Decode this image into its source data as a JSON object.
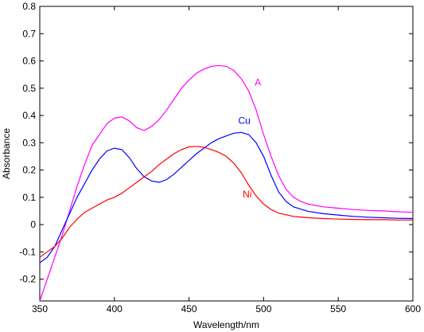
{
  "chart_data": {
    "type": "line",
    "xlabel": "Wavelength/nm",
    "ylabel": "Absorbance",
    "xlim": [
      350,
      600
    ],
    "ylim": [
      -0.28,
      0.8
    ],
    "x_ticks": [
      350,
      400,
      450,
      500,
      550,
      600
    ],
    "y_ticks": [
      -0.2,
      -0.1,
      0,
      0.1,
      0.2,
      0.3,
      0.4,
      0.5,
      0.6,
      0.7,
      0.8
    ],
    "y_tick_labels": [
      "-0.2",
      "-0.1",
      "0",
      "0.1",
      "0.2",
      "0.3",
      "0.4",
      "0.5",
      "0.6",
      "0.7",
      "0.8"
    ],
    "grid": false,
    "series": [
      {
        "name": "A",
        "color": "#ff00ff",
        "label_position": [
          494,
          0.51
        ],
        "x": [
          350,
          355,
          360,
          365,
          370,
          375,
          380,
          385,
          390,
          395,
          400,
          405,
          410,
          415,
          420,
          425,
          430,
          435,
          440,
          445,
          450,
          455,
          460,
          465,
          470,
          475,
          480,
          485,
          490,
          495,
          500,
          505,
          510,
          515,
          520,
          525,
          530,
          540,
          550,
          560,
          570,
          580,
          590,
          600
        ],
        "y": [
          -0.28,
          -0.2,
          -0.12,
          -0.04,
          0.05,
          0.14,
          0.22,
          0.29,
          0.33,
          0.37,
          0.39,
          0.395,
          0.38,
          0.355,
          0.345,
          0.36,
          0.385,
          0.42,
          0.46,
          0.5,
          0.53,
          0.555,
          0.57,
          0.58,
          0.583,
          0.58,
          0.565,
          0.535,
          0.49,
          0.42,
          0.33,
          0.25,
          0.18,
          0.13,
          0.1,
          0.085,
          0.075,
          0.065,
          0.06,
          0.055,
          0.052,
          0.05,
          0.047,
          0.045
        ]
      },
      {
        "name": "Cu",
        "color": "#0000ff",
        "label_position": [
          483,
          0.37
        ],
        "x": [
          350,
          355,
          360,
          365,
          370,
          375,
          380,
          385,
          390,
          395,
          400,
          405,
          410,
          415,
          420,
          425,
          430,
          435,
          440,
          445,
          450,
          455,
          460,
          465,
          470,
          475,
          480,
          485,
          490,
          495,
          500,
          505,
          510,
          515,
          520,
          530,
          540,
          550,
          560,
          570,
          580,
          590,
          600
        ],
        "y": [
          -0.14,
          -0.12,
          -0.08,
          -0.02,
          0.04,
          0.1,
          0.15,
          0.2,
          0.24,
          0.27,
          0.28,
          0.275,
          0.245,
          0.205,
          0.175,
          0.16,
          0.155,
          0.165,
          0.185,
          0.21,
          0.235,
          0.26,
          0.28,
          0.3,
          0.315,
          0.325,
          0.335,
          0.338,
          0.33,
          0.3,
          0.25,
          0.18,
          0.12,
          0.085,
          0.065,
          0.048,
          0.04,
          0.035,
          0.03,
          0.027,
          0.025,
          0.023,
          0.022
        ]
      },
      {
        "name": "Ni",
        "color": "#ff0000",
        "label_position": [
          486,
          0.1
        ],
        "x": [
          350,
          355,
          360,
          365,
          370,
          375,
          380,
          385,
          390,
          395,
          400,
          405,
          410,
          415,
          420,
          425,
          430,
          435,
          440,
          445,
          450,
          455,
          460,
          465,
          470,
          475,
          480,
          485,
          490,
          495,
          500,
          505,
          510,
          520,
          530,
          540,
          550,
          560,
          570,
          580,
          590,
          600
        ],
        "y": [
          -0.12,
          -0.1,
          -0.08,
          -0.05,
          -0.01,
          0.02,
          0.045,
          0.06,
          0.075,
          0.09,
          0.1,
          0.115,
          0.135,
          0.155,
          0.175,
          0.195,
          0.22,
          0.24,
          0.26,
          0.275,
          0.285,
          0.287,
          0.283,
          0.275,
          0.265,
          0.25,
          0.225,
          0.19,
          0.145,
          0.105,
          0.075,
          0.055,
          0.042,
          0.03,
          0.025,
          0.022,
          0.02,
          0.019,
          0.018,
          0.018,
          0.017,
          0.017
        ]
      }
    ]
  }
}
